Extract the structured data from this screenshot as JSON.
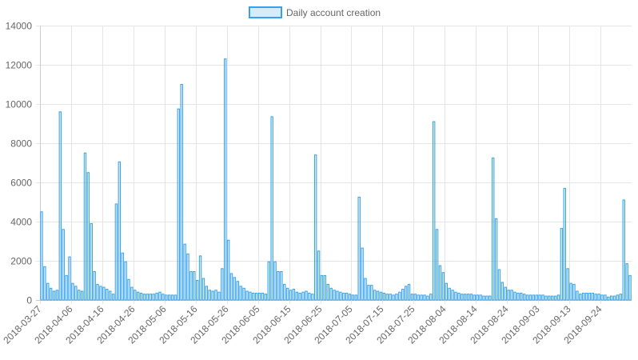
{
  "chart_data": {
    "type": "bar",
    "series": [
      {
        "name": "Daily account creation",
        "color": "#36a2eb",
        "fill": "rgba(54,162,235,0.2)",
        "values": [
          4500,
          1700,
          850,
          600,
          450,
          500,
          9600,
          3600,
          1250,
          2200,
          850,
          700,
          500,
          450,
          7500,
          6500,
          3900,
          1450,
          800,
          700,
          650,
          550,
          450,
          300,
          4900,
          7050,
          2400,
          1950,
          1050,
          650,
          500,
          400,
          350,
          300,
          300,
          300,
          300,
          350,
          400,
          300,
          250,
          250,
          250,
          250,
          9750,
          11000,
          2850,
          2350,
          1450,
          1450,
          1000,
          2250,
          1100,
          700,
          500,
          450,
          500,
          400,
          1600,
          12300,
          3050,
          1350,
          1150,
          950,
          700,
          600,
          450,
          400,
          350,
          350,
          350,
          350,
          300,
          1950,
          9350,
          1950,
          1450,
          1450,
          800,
          600,
          500,
          550,
          400,
          350,
          400,
          450,
          350,
          300,
          7400,
          2500,
          1250,
          1250,
          800,
          600,
          500,
          450,
          400,
          350,
          350,
          300,
          250,
          250,
          5250,
          2650,
          1100,
          750,
          750,
          500,
          450,
          400,
          350,
          300,
          300,
          250,
          300,
          400,
          550,
          700,
          800,
          300,
          300,
          250,
          250,
          250,
          200,
          300,
          9100,
          3600,
          1750,
          1400,
          850,
          600,
          500,
          400,
          350,
          300,
          300,
          300,
          300,
          250,
          250,
          250,
          200,
          200,
          200,
          7250,
          4150,
          1550,
          900,
          650,
          500,
          500,
          400,
          350,
          350,
          300,
          250,
          250,
          250,
          250,
          250,
          250,
          200,
          200,
          200,
          200,
          250,
          3650,
          5700,
          1600,
          850,
          800,
          450,
          300,
          350,
          350,
          350,
          350,
          300,
          300,
          250,
          250,
          150,
          200,
          200,
          250,
          300,
          5100,
          1850,
          1250
        ]
      }
    ],
    "x_ticks": [
      "2018-03-27",
      "2018-04-06",
      "2018-04-16",
      "2018-04-26",
      "2018-05-06",
      "2018-05-16",
      "2018-05-26",
      "2018-06-05",
      "2018-06-15",
      "2018-06-25",
      "2018-07-05",
      "2018-07-15",
      "2018-07-25",
      "2018-08-04",
      "2018-08-14",
      "2018-08-24",
      "2018-09-03",
      "2018-09-13",
      "2018-09-24"
    ],
    "x_tick_index": [
      0,
      10,
      20,
      30,
      40,
      50,
      60,
      70,
      80,
      90,
      100,
      110,
      120,
      130,
      140,
      150,
      160,
      170,
      180
    ],
    "y_ticks": [
      0,
      2000,
      4000,
      6000,
      8000,
      10000,
      12000,
      14000
    ],
    "ylim": [
      0,
      14000
    ],
    "grid": true,
    "legend_position": "top-center"
  }
}
